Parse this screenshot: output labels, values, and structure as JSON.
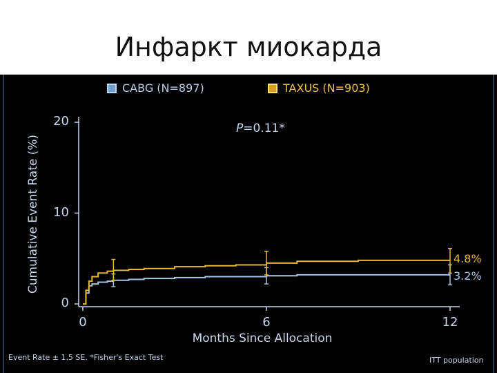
{
  "slide": {
    "title": "Инфаркт миокарда"
  },
  "footer": {
    "left": "Event Rate ± 1.5 SE. *Fisher's Exact Test",
    "right": "ITT population"
  },
  "colors": {
    "cabg": "#a8c4e6",
    "taxus": "#e8b830",
    "axis": "#c9d6ea",
    "background": "#000000"
  },
  "chart_data": {
    "type": "line",
    "xlabel": "Months Since Allocation",
    "ylabel": "Cumulative Event Rate (%)",
    "xlim": [
      0,
      12
    ],
    "ylim": [
      0,
      20
    ],
    "xticks": [
      0,
      6,
      12
    ],
    "yticks": [
      0,
      10,
      20
    ],
    "annotation": {
      "prefix": "P",
      "text": "=0.11*"
    },
    "series": [
      {
        "name": "CABG (N=897)",
        "color": "#a8c4e6",
        "x": [
          0,
          0.1,
          0.2,
          0.3,
          0.5,
          0.8,
          1.0,
          1.5,
          2.0,
          3.0,
          4.0,
          5.0,
          6.0,
          7.0,
          9.0,
          12.0
        ],
        "y": [
          0,
          1.2,
          2.0,
          2.2,
          2.4,
          2.5,
          2.6,
          2.7,
          2.8,
          2.9,
          3.0,
          3.0,
          3.1,
          3.2,
          3.2,
          3.2
        ],
        "error_bars": [
          {
            "x": 1.0,
            "low": 1.9,
            "high": 3.3
          },
          {
            "x": 6.0,
            "low": 2.2,
            "high": 4.0
          },
          {
            "x": 12.0,
            "low": 2.1,
            "high": 4.3
          }
        ],
        "end_label": "3.2%"
      },
      {
        "name": "TAXUS (N=903)",
        "color": "#e8b830",
        "x": [
          0,
          0.1,
          0.2,
          0.3,
          0.5,
          0.8,
          1.0,
          1.5,
          2.0,
          3.0,
          4.0,
          5.0,
          6.0,
          7.0,
          9.0,
          12.0
        ],
        "y": [
          0,
          1.5,
          2.5,
          3.0,
          3.4,
          3.6,
          3.7,
          3.8,
          3.9,
          4.1,
          4.2,
          4.3,
          4.5,
          4.7,
          4.8,
          4.8
        ],
        "error_bars": [
          {
            "x": 1.0,
            "low": 2.6,
            "high": 4.9
          },
          {
            "x": 6.0,
            "low": 3.2,
            "high": 5.8
          },
          {
            "x": 12.0,
            "low": 3.4,
            "high": 6.1
          }
        ],
        "end_label": "4.8%"
      }
    ]
  }
}
